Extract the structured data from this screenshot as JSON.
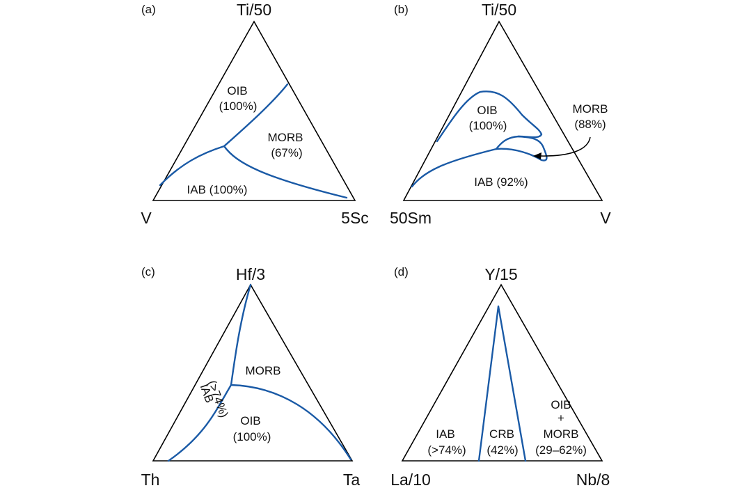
{
  "panels": [
    {
      "label": "(a)",
      "apex": "Ti/50",
      "bottom_left": "V",
      "bottom_right": "5Sc",
      "fields": [
        {
          "line1": "OIB",
          "line2": "(100%)"
        },
        {
          "line1": "MORB",
          "line2": "(67%)"
        },
        {
          "line1": "IAB (100%)"
        }
      ]
    },
    {
      "label": "(b)",
      "apex": "Ti/50",
      "bottom_left": "50Sm",
      "bottom_right": "V",
      "fields": [
        {
          "line1": "OIB",
          "line2": "(100%)"
        },
        {
          "line1": "MORB",
          "line2": "(88%)"
        },
        {
          "line1": "IAB (92%)"
        }
      ]
    },
    {
      "label": "(c)",
      "apex": "Hf/3",
      "bottom_left": "Th",
      "bottom_right": "Ta",
      "fields": [
        {
          "line1": "MORB"
        },
        {
          "line1": "OIB",
          "line2": "(100%)"
        },
        {
          "line1": "IAB",
          "line2": "(>74%)"
        }
      ]
    },
    {
      "label": "(d)",
      "apex": "Y/15",
      "bottom_left": "La/10",
      "bottom_right": "Nb/8",
      "fields": [
        {
          "line1": "IAB",
          "line2": "(>74%)"
        },
        {
          "line1": "CRB",
          "line2": "(42%)"
        },
        {
          "line1": "OIB",
          "line2": "+",
          "line3": "MORB",
          "line4": "(29–62%)"
        }
      ]
    }
  ],
  "colors": {
    "boundary": "#1a5aa6",
    "frame": "#000000"
  }
}
